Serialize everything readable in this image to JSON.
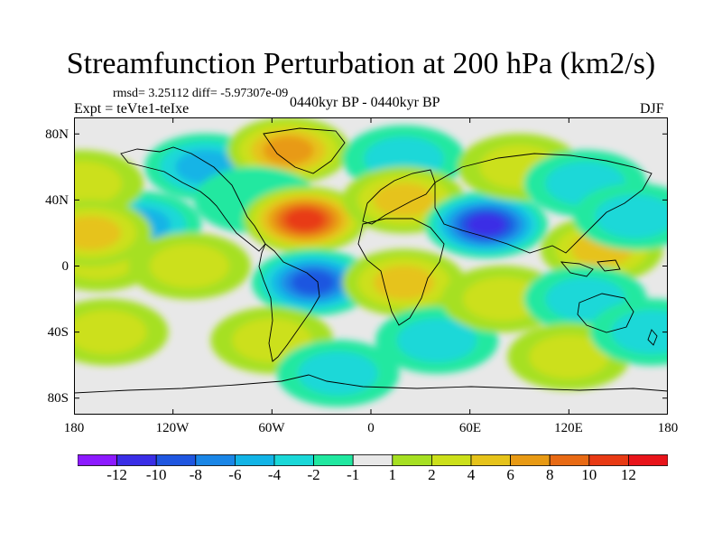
{
  "title": "Streamfunction Perturbation at 200 hPa (km2/s)",
  "stats": "rmsd= 3.25112 diff= -5.97307e-09",
  "experiment": "Expt = teVte1-teIxe",
  "period": "0440kyr BP - 0440kyr BP",
  "season": "DJF",
  "y_ticks": [
    "80N",
    "40N",
    "0",
    "40S",
    "80S"
  ],
  "x_ticks": [
    "180",
    "120W",
    "60W",
    "0",
    "60E",
    "120E",
    "180"
  ],
  "colorbar": {
    "labels": [
      "-12",
      "-10",
      "-8",
      "-6",
      "-4",
      "-2",
      "-1",
      "1",
      "2",
      "4",
      "6",
      "8",
      "10",
      "12"
    ],
    "colors": [
      "#8c1aff",
      "#3a2ee6",
      "#1f56e0",
      "#1a86e6",
      "#12b4e6",
      "#1ad8d8",
      "#20e8a0",
      "#e8e8e8",
      "#a6e022",
      "#cce01a",
      "#e6c31a",
      "#e89a14",
      "#e86a14",
      "#e83a14",
      "#e8141a"
    ]
  },
  "field_blobs": [
    {
      "lon": -140,
      "lat": 25,
      "value": -4
    },
    {
      "lon": -165,
      "lat": 5,
      "value": 2
    },
    {
      "lon": -160,
      "lat": -40,
      "value": 3
    },
    {
      "lon": -175,
      "lat": 50,
      "value": 2
    },
    {
      "lon": -170,
      "lat": 20,
      "value": 5
    },
    {
      "lon": -100,
      "lat": 60,
      "value": -4
    },
    {
      "lon": -110,
      "lat": 0,
      "value": 2
    },
    {
      "lon": -50,
      "lat": 70,
      "value": 7
    },
    {
      "lon": -70,
      "lat": 40,
      "value": -1
    },
    {
      "lon": -40,
      "lat": 28,
      "value": 11
    },
    {
      "lon": -35,
      "lat": -10,
      "value": -8
    },
    {
      "lon": -60,
      "lat": -45,
      "value": 2
    },
    {
      "lon": -20,
      "lat": -65,
      "value": -3
    },
    {
      "lon": 20,
      "lat": 65,
      "value": -3
    },
    {
      "lon": 20,
      "lat": 40,
      "value": 4
    },
    {
      "lon": 20,
      "lat": -10,
      "value": 4
    },
    {
      "lon": 40,
      "lat": -45,
      "value": -2
    },
    {
      "lon": 70,
      "lat": 25,
      "value": -11
    },
    {
      "lon": 90,
      "lat": 60,
      "value": 2
    },
    {
      "lon": 80,
      "lat": -20,
      "value": 3
    },
    {
      "lon": 130,
      "lat": 50,
      "value": -3
    },
    {
      "lon": 140,
      "lat": 10,
      "value": 5
    },
    {
      "lon": 130,
      "lat": -20,
      "value": -2
    },
    {
      "lon": 120,
      "lat": -55,
      "value": 3
    },
    {
      "lon": 160,
      "lat": 30,
      "value": -3
    },
    {
      "lon": 170,
      "lat": -40,
      "value": -2
    }
  ],
  "icons": {
    "coastline": "coastline-outline"
  }
}
